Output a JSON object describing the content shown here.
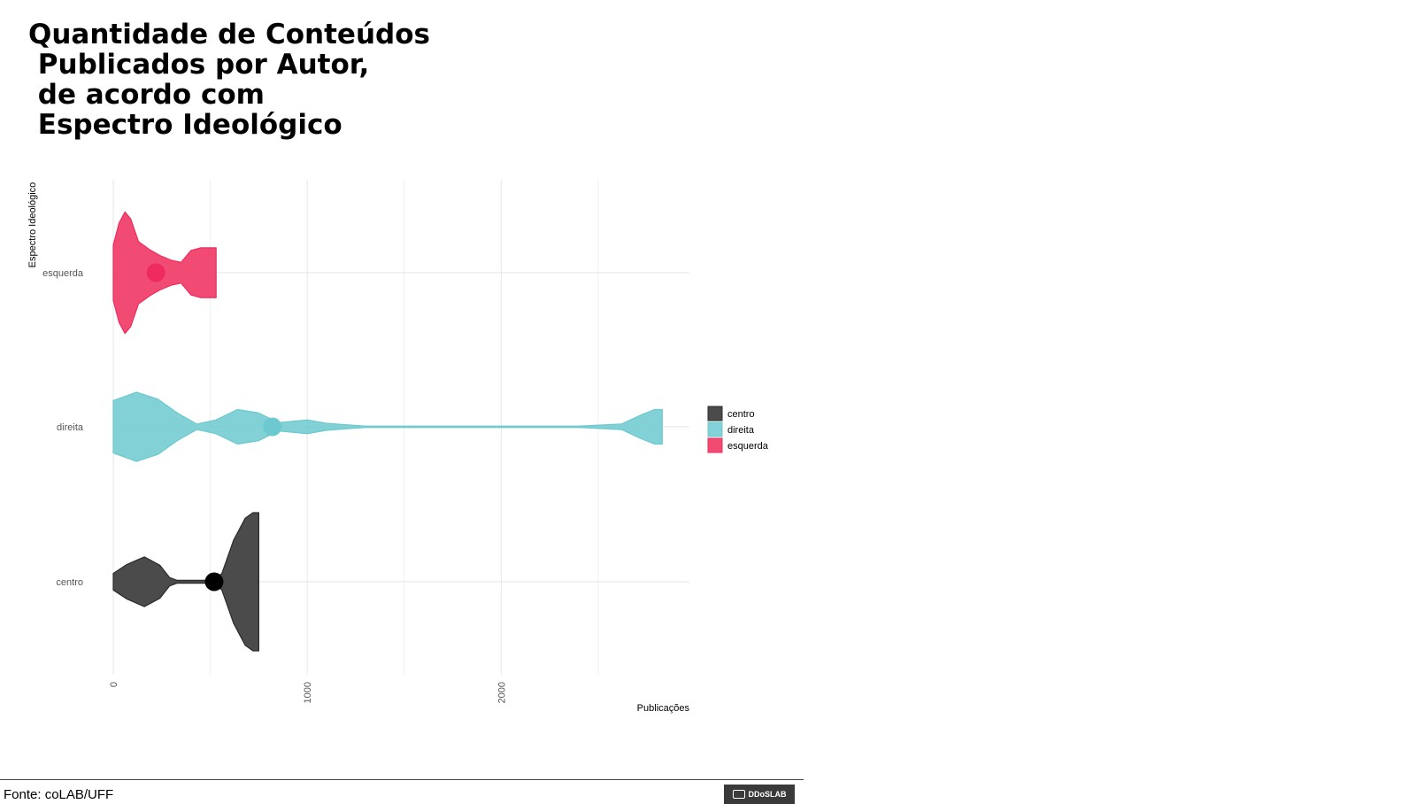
{
  "title_lines": [
    "Quantidade de Conteúdos",
    " Publicados por Autor,",
    " de acordo com",
    " Espectro Ideológico"
  ],
  "source": "Fonte: coLAB/UFF",
  "logo_text": "DDoSLAB",
  "colors": {
    "centro": "#2b2b2b",
    "direita": "#6cc9cf",
    "esquerda": "#ee2b5c",
    "grid": "#e6e6e6"
  },
  "chart_data": {
    "type": "violin",
    "xlabel": "Publicações",
    "ylabel": "Espectro Ideológico",
    "xlim": [
      0,
      2970
    ],
    "x_ticks": [
      0,
      1000,
      2000
    ],
    "categories": [
      "centro",
      "direita",
      "esquerda"
    ],
    "legend": {
      "position": "right",
      "entries": [
        "centro",
        "direita",
        "esquerda"
      ]
    },
    "series": [
      {
        "name": "centro",
        "range": [
          0,
          750
        ],
        "mean": 520,
        "density": [
          [
            0,
            0.12
          ],
          [
            70,
            0.25
          ],
          [
            160,
            0.36
          ],
          [
            240,
            0.24
          ],
          [
            290,
            0.06
          ],
          [
            330,
            0.02
          ],
          [
            450,
            0.02
          ],
          [
            520,
            0.02
          ],
          [
            560,
            0.12
          ],
          [
            620,
            0.6
          ],
          [
            680,
            0.92
          ],
          [
            720,
            1.0
          ],
          [
            750,
            1.0
          ]
        ]
      },
      {
        "name": "direita",
        "range": [
          0,
          2830
        ],
        "mean": 820,
        "density": [
          [
            0,
            0.38
          ],
          [
            120,
            0.5
          ],
          [
            230,
            0.4
          ],
          [
            330,
            0.2
          ],
          [
            430,
            0.04
          ],
          [
            530,
            0.1
          ],
          [
            640,
            0.25
          ],
          [
            750,
            0.2
          ],
          [
            850,
            0.06
          ],
          [
            1000,
            0.1
          ],
          [
            1100,
            0.05
          ],
          [
            1300,
            0.01
          ],
          [
            2400,
            0.01
          ],
          [
            2620,
            0.04
          ],
          [
            2720,
            0.17
          ],
          [
            2790,
            0.25
          ],
          [
            2830,
            0.25
          ]
        ]
      },
      {
        "name": "esquerda",
        "range": [
          0,
          530
        ],
        "mean": 220,
        "density": [
          [
            0,
            0.4
          ],
          [
            30,
            0.72
          ],
          [
            60,
            0.88
          ],
          [
            90,
            0.78
          ],
          [
            130,
            0.45
          ],
          [
            190,
            0.33
          ],
          [
            240,
            0.25
          ],
          [
            300,
            0.18
          ],
          [
            350,
            0.15
          ],
          [
            400,
            0.32
          ],
          [
            450,
            0.36
          ],
          [
            500,
            0.36
          ],
          [
            530,
            0.36
          ]
        ]
      }
    ]
  }
}
